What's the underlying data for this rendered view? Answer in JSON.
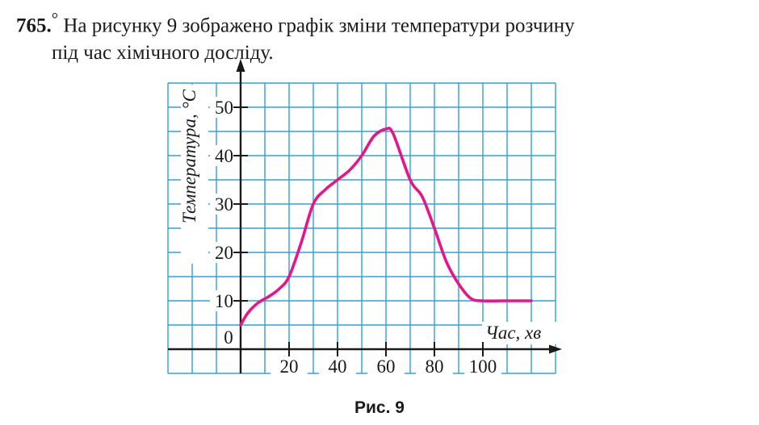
{
  "problem": {
    "number": "765.",
    "marker": "°",
    "text_line1": " На рисунку 9 зображено графік зміни температури розчину",
    "text_line2": "під час хімічного досліду."
  },
  "figure": {
    "caption": "Рис. 9"
  },
  "colors": {
    "grid": "#2aa3dc",
    "curve": "#e6158c",
    "axis": "#1a1a1a"
  },
  "chart_data": {
    "type": "line",
    "title": "",
    "xlabel": "Час, хв",
    "ylabel": "Температура, °С",
    "xlim": [
      -30,
      130
    ],
    "ylim": [
      -5,
      55
    ],
    "x_ticks": [
      20,
      40,
      60,
      80,
      100
    ],
    "y_ticks": [
      10,
      20,
      30,
      40,
      50
    ],
    "origin_label": "0",
    "grid": true,
    "grid_step_x": 10,
    "grid_step_y": 5,
    "series": [
      {
        "values_xy": [
          [
            0,
            5
          ],
          [
            3,
            7.5
          ],
          [
            7,
            9.5
          ],
          [
            12,
            11
          ],
          [
            16,
            12.5
          ],
          [
            20,
            15
          ],
          [
            25,
            22
          ],
          [
            30,
            30
          ],
          [
            35,
            33
          ],
          [
            40,
            35
          ],
          [
            45,
            37
          ],
          [
            50,
            40
          ],
          [
            55,
            44
          ],
          [
            60,
            45.5
          ],
          [
            63,
            44.5
          ],
          [
            70,
            35
          ],
          [
            75,
            31.5
          ],
          [
            80,
            25
          ],
          [
            85,
            18
          ],
          [
            90,
            13.5
          ],
          [
            95,
            10.5
          ],
          [
            100,
            10
          ],
          [
            110,
            10
          ],
          [
            120,
            10
          ]
        ]
      }
    ]
  }
}
